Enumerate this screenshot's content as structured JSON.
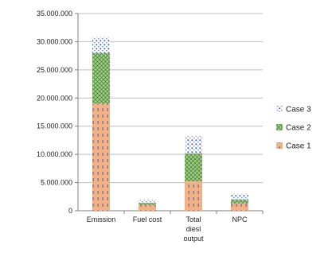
{
  "chart_data": {
    "type": "bar",
    "stacked": true,
    "categories": [
      [
        "Emission"
      ],
      [
        "Fuel cost"
      ],
      [
        "Total",
        "diesl",
        "output"
      ],
      [
        "NPC"
      ]
    ],
    "series": [
      {
        "name": "Case 1",
        "values": [
          19000000,
          1000000,
          5200000,
          1300000
        ],
        "color": "#f4b183",
        "pattern": "dash"
      },
      {
        "name": "Case 2",
        "values": [
          9000000,
          400000,
          5000000,
          700000
        ],
        "color": "#a9d18e",
        "pattern": "cross"
      },
      {
        "name": "Case 3",
        "values": [
          2800000,
          500000,
          3000000,
          1000000
        ],
        "color": "#ffffff",
        "pattern": "dots"
      }
    ],
    "ylim": [
      0,
      35000000
    ],
    "yticks": [
      0,
      5000000,
      10000000,
      15000000,
      20000000,
      25000000,
      30000000,
      35000000
    ],
    "ytick_labels": [
      "0",
      "5.000.000",
      "10.000.000",
      "15.000.000",
      "20.000.000",
      "25.000.000",
      "30.000.000",
      "35.000.000"
    ],
    "grid": true,
    "legend": "right"
  }
}
